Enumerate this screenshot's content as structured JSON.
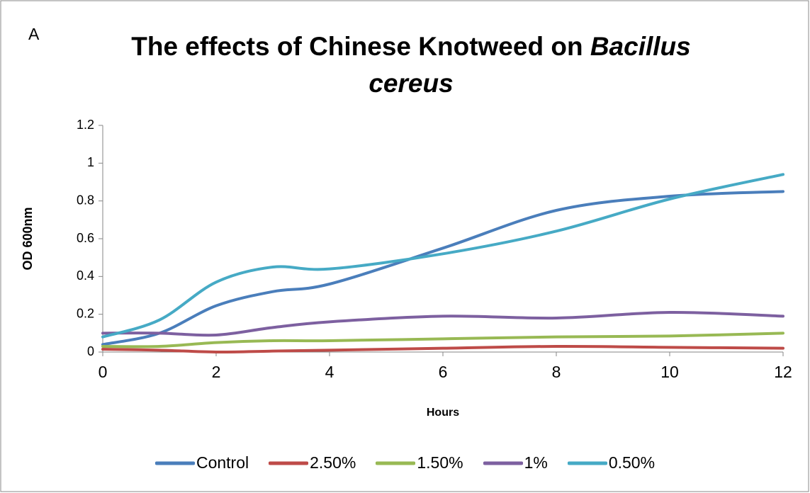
{
  "chart_data": {
    "type": "line",
    "panel_label": "A",
    "title": "The effects of Chinese Knotweed on",
    "title_species": "Bacillus cereus",
    "x_label": "Hours",
    "y_label": "OD 600nm",
    "x": [
      0,
      1,
      2,
      3,
      4,
      6,
      8,
      10,
      12
    ],
    "xlim": [
      0,
      12
    ],
    "xticks": [
      0,
      2,
      4,
      6,
      8,
      10,
      12
    ],
    "ylim": [
      0,
      1.2
    ],
    "yticks": [
      0,
      0.2,
      0.4,
      0.6,
      0.8,
      1,
      1.2
    ],
    "grid": false,
    "smooth": true,
    "legend": "bottom",
    "series": [
      {
        "name": "Control",
        "color": "#4a7ebb",
        "values": [
          0.04,
          0.1,
          0.245,
          0.32,
          0.36,
          0.55,
          0.75,
          0.825,
          0.85
        ]
      },
      {
        "name": "2.50%",
        "color": "#be4b48",
        "values": [
          0.015,
          0.01,
          0.0,
          0.005,
          0.01,
          0.02,
          0.03,
          0.025,
          0.02
        ]
      },
      {
        "name": "1.50%",
        "color": "#98b954",
        "values": [
          0.03,
          0.03,
          0.05,
          0.06,
          0.06,
          0.07,
          0.08,
          0.085,
          0.1
        ]
      },
      {
        "name": "1%",
        "color": "#7d60a0",
        "values": [
          0.1,
          0.1,
          0.09,
          0.13,
          0.16,
          0.19,
          0.18,
          0.21,
          0.19
        ]
      },
      {
        "name": "0.50%",
        "color": "#46aac5",
        "values": [
          0.08,
          0.17,
          0.37,
          0.45,
          0.44,
          0.52,
          0.64,
          0.81,
          0.94
        ]
      }
    ]
  }
}
